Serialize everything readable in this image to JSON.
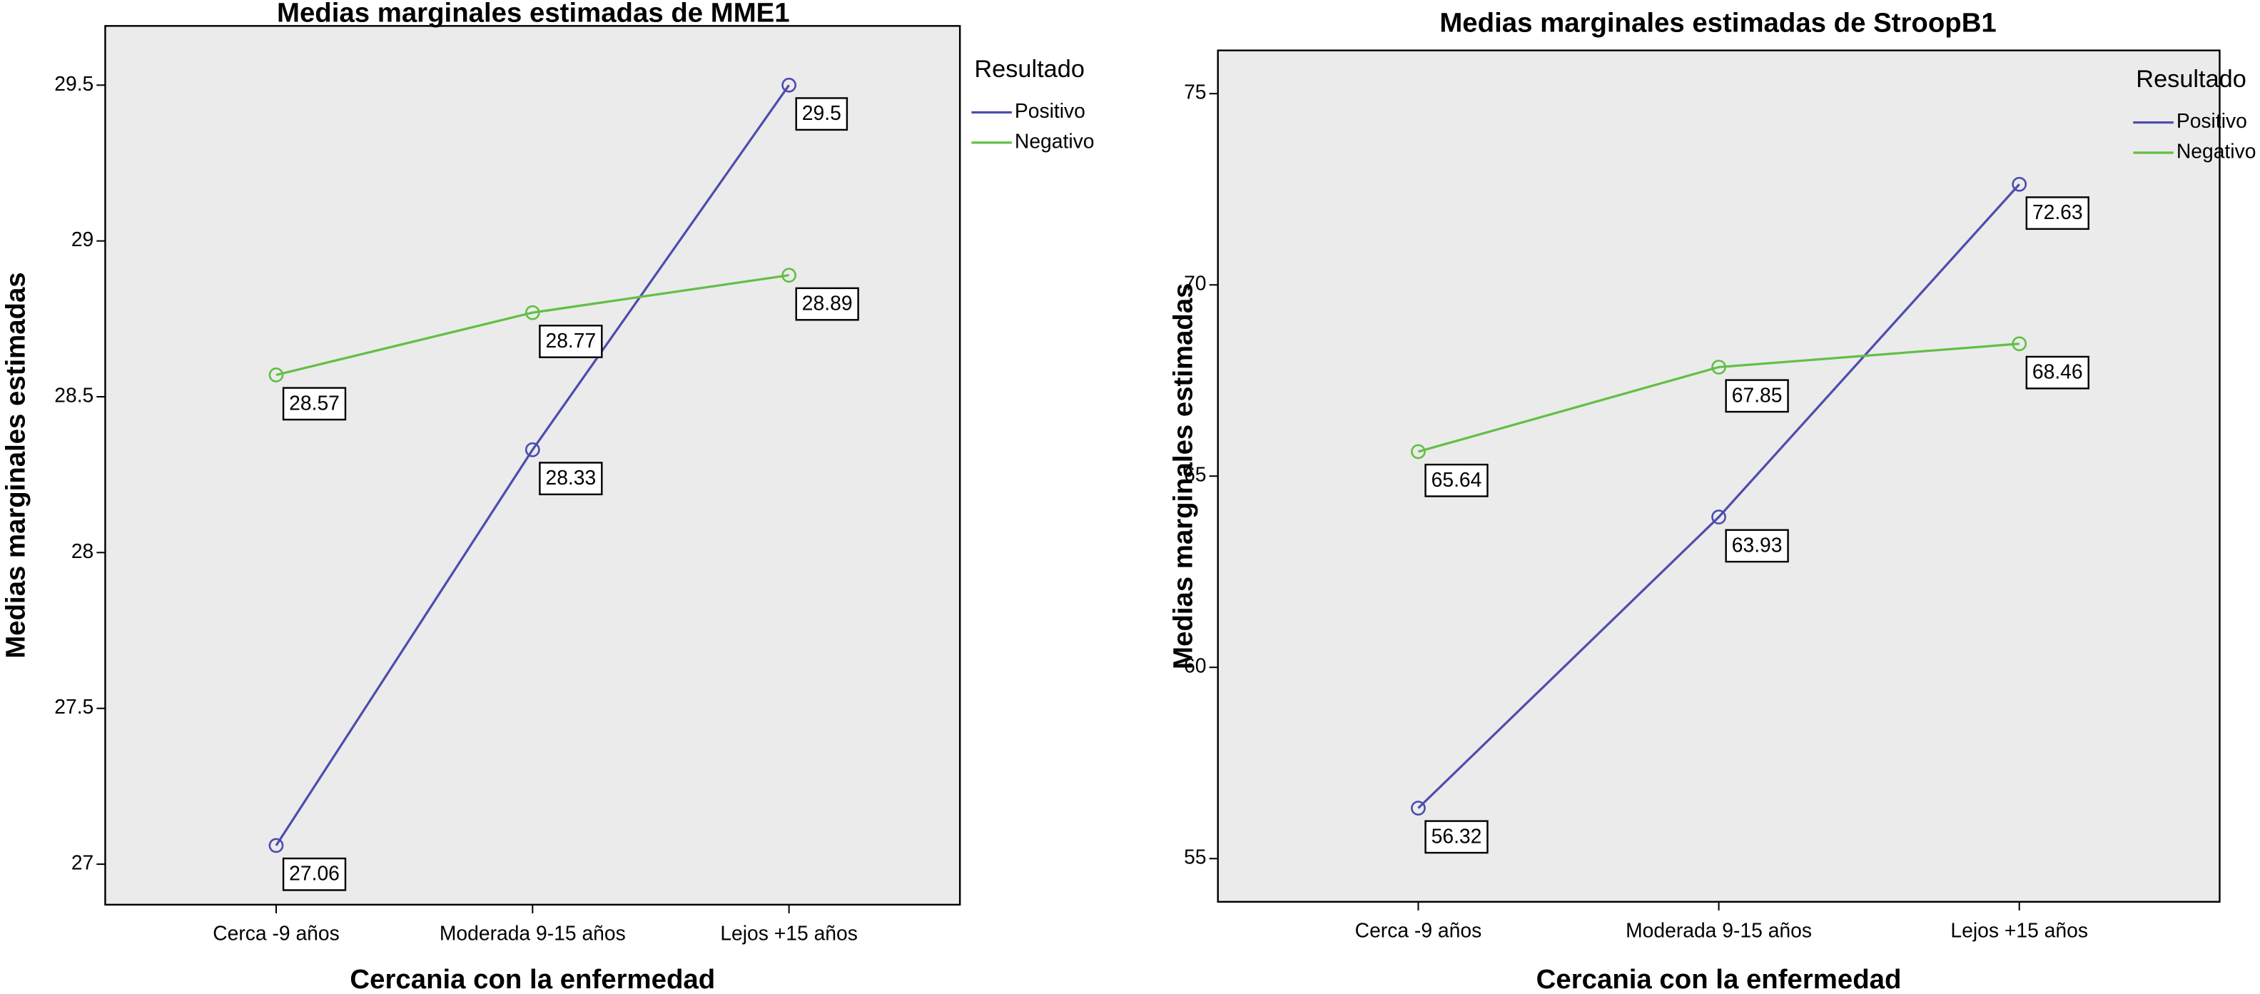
{
  "chart_data": [
    {
      "type": "line",
      "title": "Medias marginales estimadas de MME1",
      "x_label": "Cercania con la enfermedad",
      "y_label": "Medias marginales estimadas",
      "legend_title": "Resultado",
      "legend_position": "right",
      "categories": [
        "Cerca -9 años",
        "Moderada 9-15 años",
        "Lejos +15 años"
      ],
      "series": [
        {
          "name": "Positivo",
          "color": "#4d4daf",
          "values": [
            27.06,
            28.33,
            29.5
          ]
        },
        {
          "name": "Negativo",
          "color": "#62bf45",
          "values": [
            28.57,
            28.77,
            28.89
          ]
        }
      ],
      "ylim": [
        26.87,
        29.69
      ],
      "yticks": [
        27,
        27.5,
        28,
        28.5,
        29,
        29.5
      ],
      "grid": false
    },
    {
      "type": "line",
      "title": "Medias marginales estimadas de StroopB1",
      "x_label": "Cercania con la enfermedad",
      "y_label": "Medias marginales estimadas",
      "legend_title": "Resultado",
      "legend_position": "right",
      "categories": [
        "Cerca -9 años",
        "Moderada 9-15 años",
        "Lejos +15 años"
      ],
      "series": [
        {
          "name": "Positivo",
          "color": "#4d4daf",
          "values": [
            56.32,
            63.93,
            72.63
          ]
        },
        {
          "name": "Negativo",
          "color": "#62bf45",
          "values": [
            65.64,
            67.85,
            68.46
          ]
        }
      ],
      "ylim": [
        53.87,
        76.13
      ],
      "yticks": [
        55,
        60,
        65,
        70,
        75
      ],
      "grid": false
    }
  ]
}
